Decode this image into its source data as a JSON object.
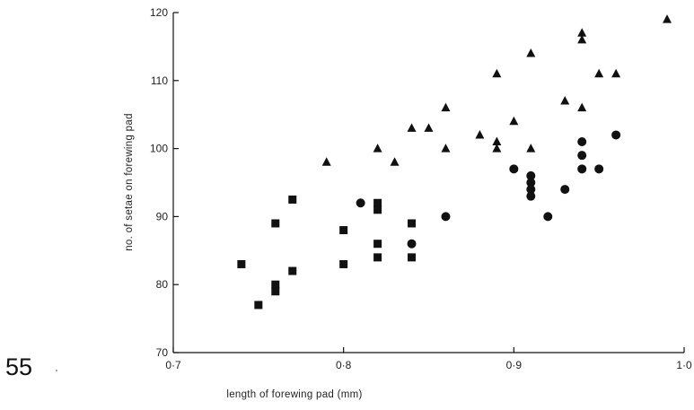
{
  "page": {
    "number": "55"
  },
  "chart_data": {
    "type": "scatter",
    "title": "",
    "xlabel": "length of forewing pad (mm)",
    "ylabel": "no. of setae on forewing pad",
    "xlim": [
      0.7,
      1.0
    ],
    "ylim": [
      70,
      120
    ],
    "xticks": [
      {
        "value": 0.7,
        "label": "0·7"
      },
      {
        "value": 0.8,
        "label": "0·8"
      },
      {
        "value": 0.9,
        "label": "0·9"
      },
      {
        "value": 1.0,
        "label": "1·0"
      }
    ],
    "yticks": [
      {
        "value": 70,
        "label": "70"
      },
      {
        "value": 80,
        "label": "80"
      },
      {
        "value": 90,
        "label": "90"
      },
      {
        "value": 100,
        "label": "100"
      },
      {
        "value": 110,
        "label": "110"
      },
      {
        "value": 120,
        "label": "120"
      }
    ],
    "grid": false,
    "legend": "none",
    "color": "#111111",
    "series": [
      {
        "marker": "square",
        "points": [
          [
            0.74,
            83
          ],
          [
            0.75,
            77
          ],
          [
            0.76,
            89
          ],
          [
            0.76,
            80
          ],
          [
            0.76,
            79
          ],
          [
            0.77,
            92.5
          ],
          [
            0.77,
            82
          ],
          [
            0.8,
            88
          ],
          [
            0.8,
            83
          ],
          [
            0.82,
            92
          ],
          [
            0.82,
            91
          ],
          [
            0.82,
            86
          ],
          [
            0.82,
            84
          ],
          [
            0.84,
            89
          ],
          [
            0.84,
            84
          ]
        ]
      },
      {
        "marker": "circle",
        "points": [
          [
            0.81,
            92
          ],
          [
            0.84,
            86
          ],
          [
            0.86,
            90
          ],
          [
            0.9,
            97
          ],
          [
            0.91,
            96
          ],
          [
            0.91,
            95
          ],
          [
            0.91,
            94
          ],
          [
            0.91,
            93
          ],
          [
            0.92,
            90
          ],
          [
            0.93,
            94
          ],
          [
            0.94,
            101
          ],
          [
            0.94,
            99
          ],
          [
            0.94,
            97
          ],
          [
            0.95,
            97
          ],
          [
            0.96,
            102
          ]
        ]
      },
      {
        "marker": "triangle",
        "points": [
          [
            0.79,
            98
          ],
          [
            0.82,
            100
          ],
          [
            0.83,
            98
          ],
          [
            0.84,
            103
          ],
          [
            0.85,
            103
          ],
          [
            0.86,
            106
          ],
          [
            0.86,
            100
          ],
          [
            0.88,
            102
          ],
          [
            0.89,
            111
          ],
          [
            0.89,
            101
          ],
          [
            0.89,
            100
          ],
          [
            0.9,
            104
          ],
          [
            0.91,
            114
          ],
          [
            0.91,
            100
          ],
          [
            0.93,
            107
          ],
          [
            0.94,
            117
          ],
          [
            0.94,
            116
          ],
          [
            0.94,
            106
          ],
          [
            0.95,
            111
          ],
          [
            0.96,
            111
          ],
          [
            0.99,
            119
          ]
        ]
      }
    ]
  }
}
